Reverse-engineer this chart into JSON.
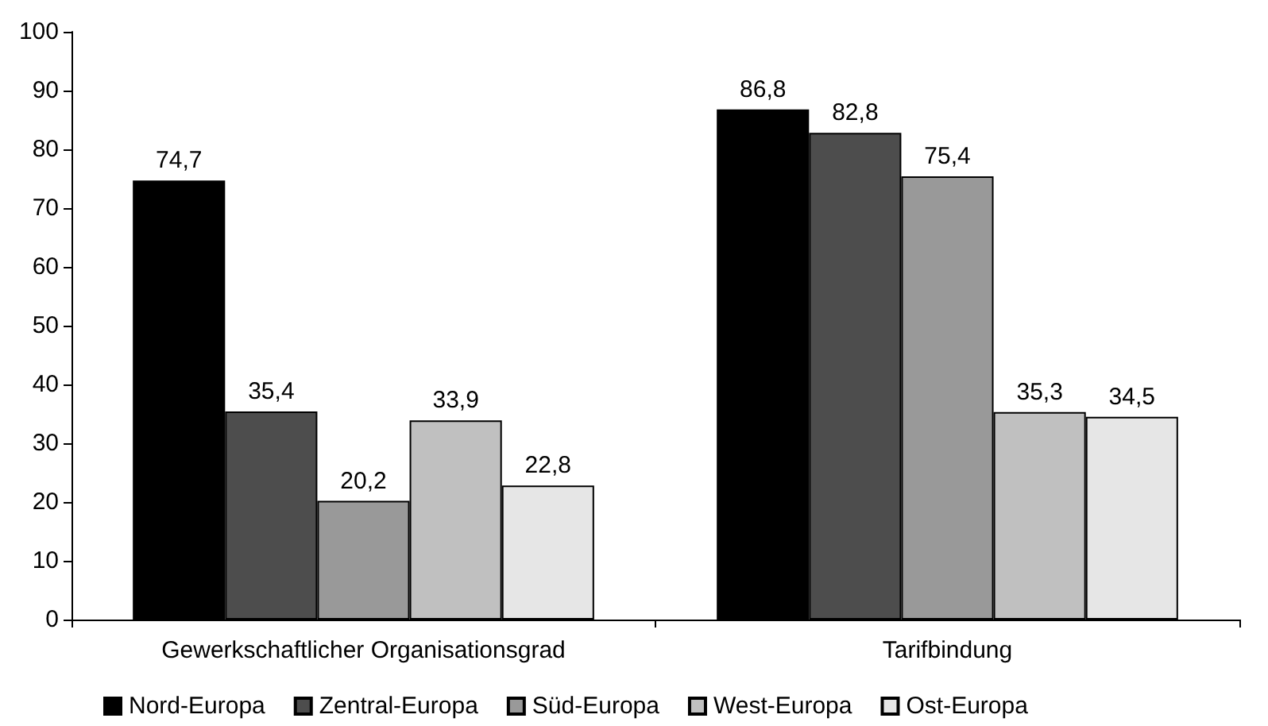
{
  "chart_data": {
    "type": "bar",
    "categories": [
      "Gewerkschaftlicher Organisationsgrad",
      "Tarifbindung"
    ],
    "series": [
      {
        "name": "Nord-Europa",
        "color": "#000000",
        "values": [
          74.7,
          86.8
        ],
        "value_labels": [
          "74,7",
          "86,8"
        ]
      },
      {
        "name": "Zentral-Europa",
        "color": "#4d4d4d",
        "values": [
          35.4,
          82.8
        ],
        "value_labels": [
          "35,4",
          "82,8"
        ]
      },
      {
        "name": "Süd-Europa",
        "color": "#999999",
        "values": [
          20.2,
          75.4
        ],
        "value_labels": [
          "20,2",
          "75,4"
        ]
      },
      {
        "name": "West-Europa",
        "color": "#c0c0c0",
        "values": [
          33.9,
          35.3
        ],
        "value_labels": [
          "33,9",
          "35,3"
        ]
      },
      {
        "name": "Ost-Europa",
        "color": "#e6e6e6",
        "values": [
          22.8,
          34.5
        ],
        "value_labels": [
          "22,8",
          "34,5"
        ]
      }
    ],
    "ylim": [
      0,
      100
    ],
    "yticks": [
      0,
      10,
      20,
      30,
      40,
      50,
      60,
      70,
      80,
      90,
      100
    ],
    "grid": false,
    "legend": "bottom"
  }
}
